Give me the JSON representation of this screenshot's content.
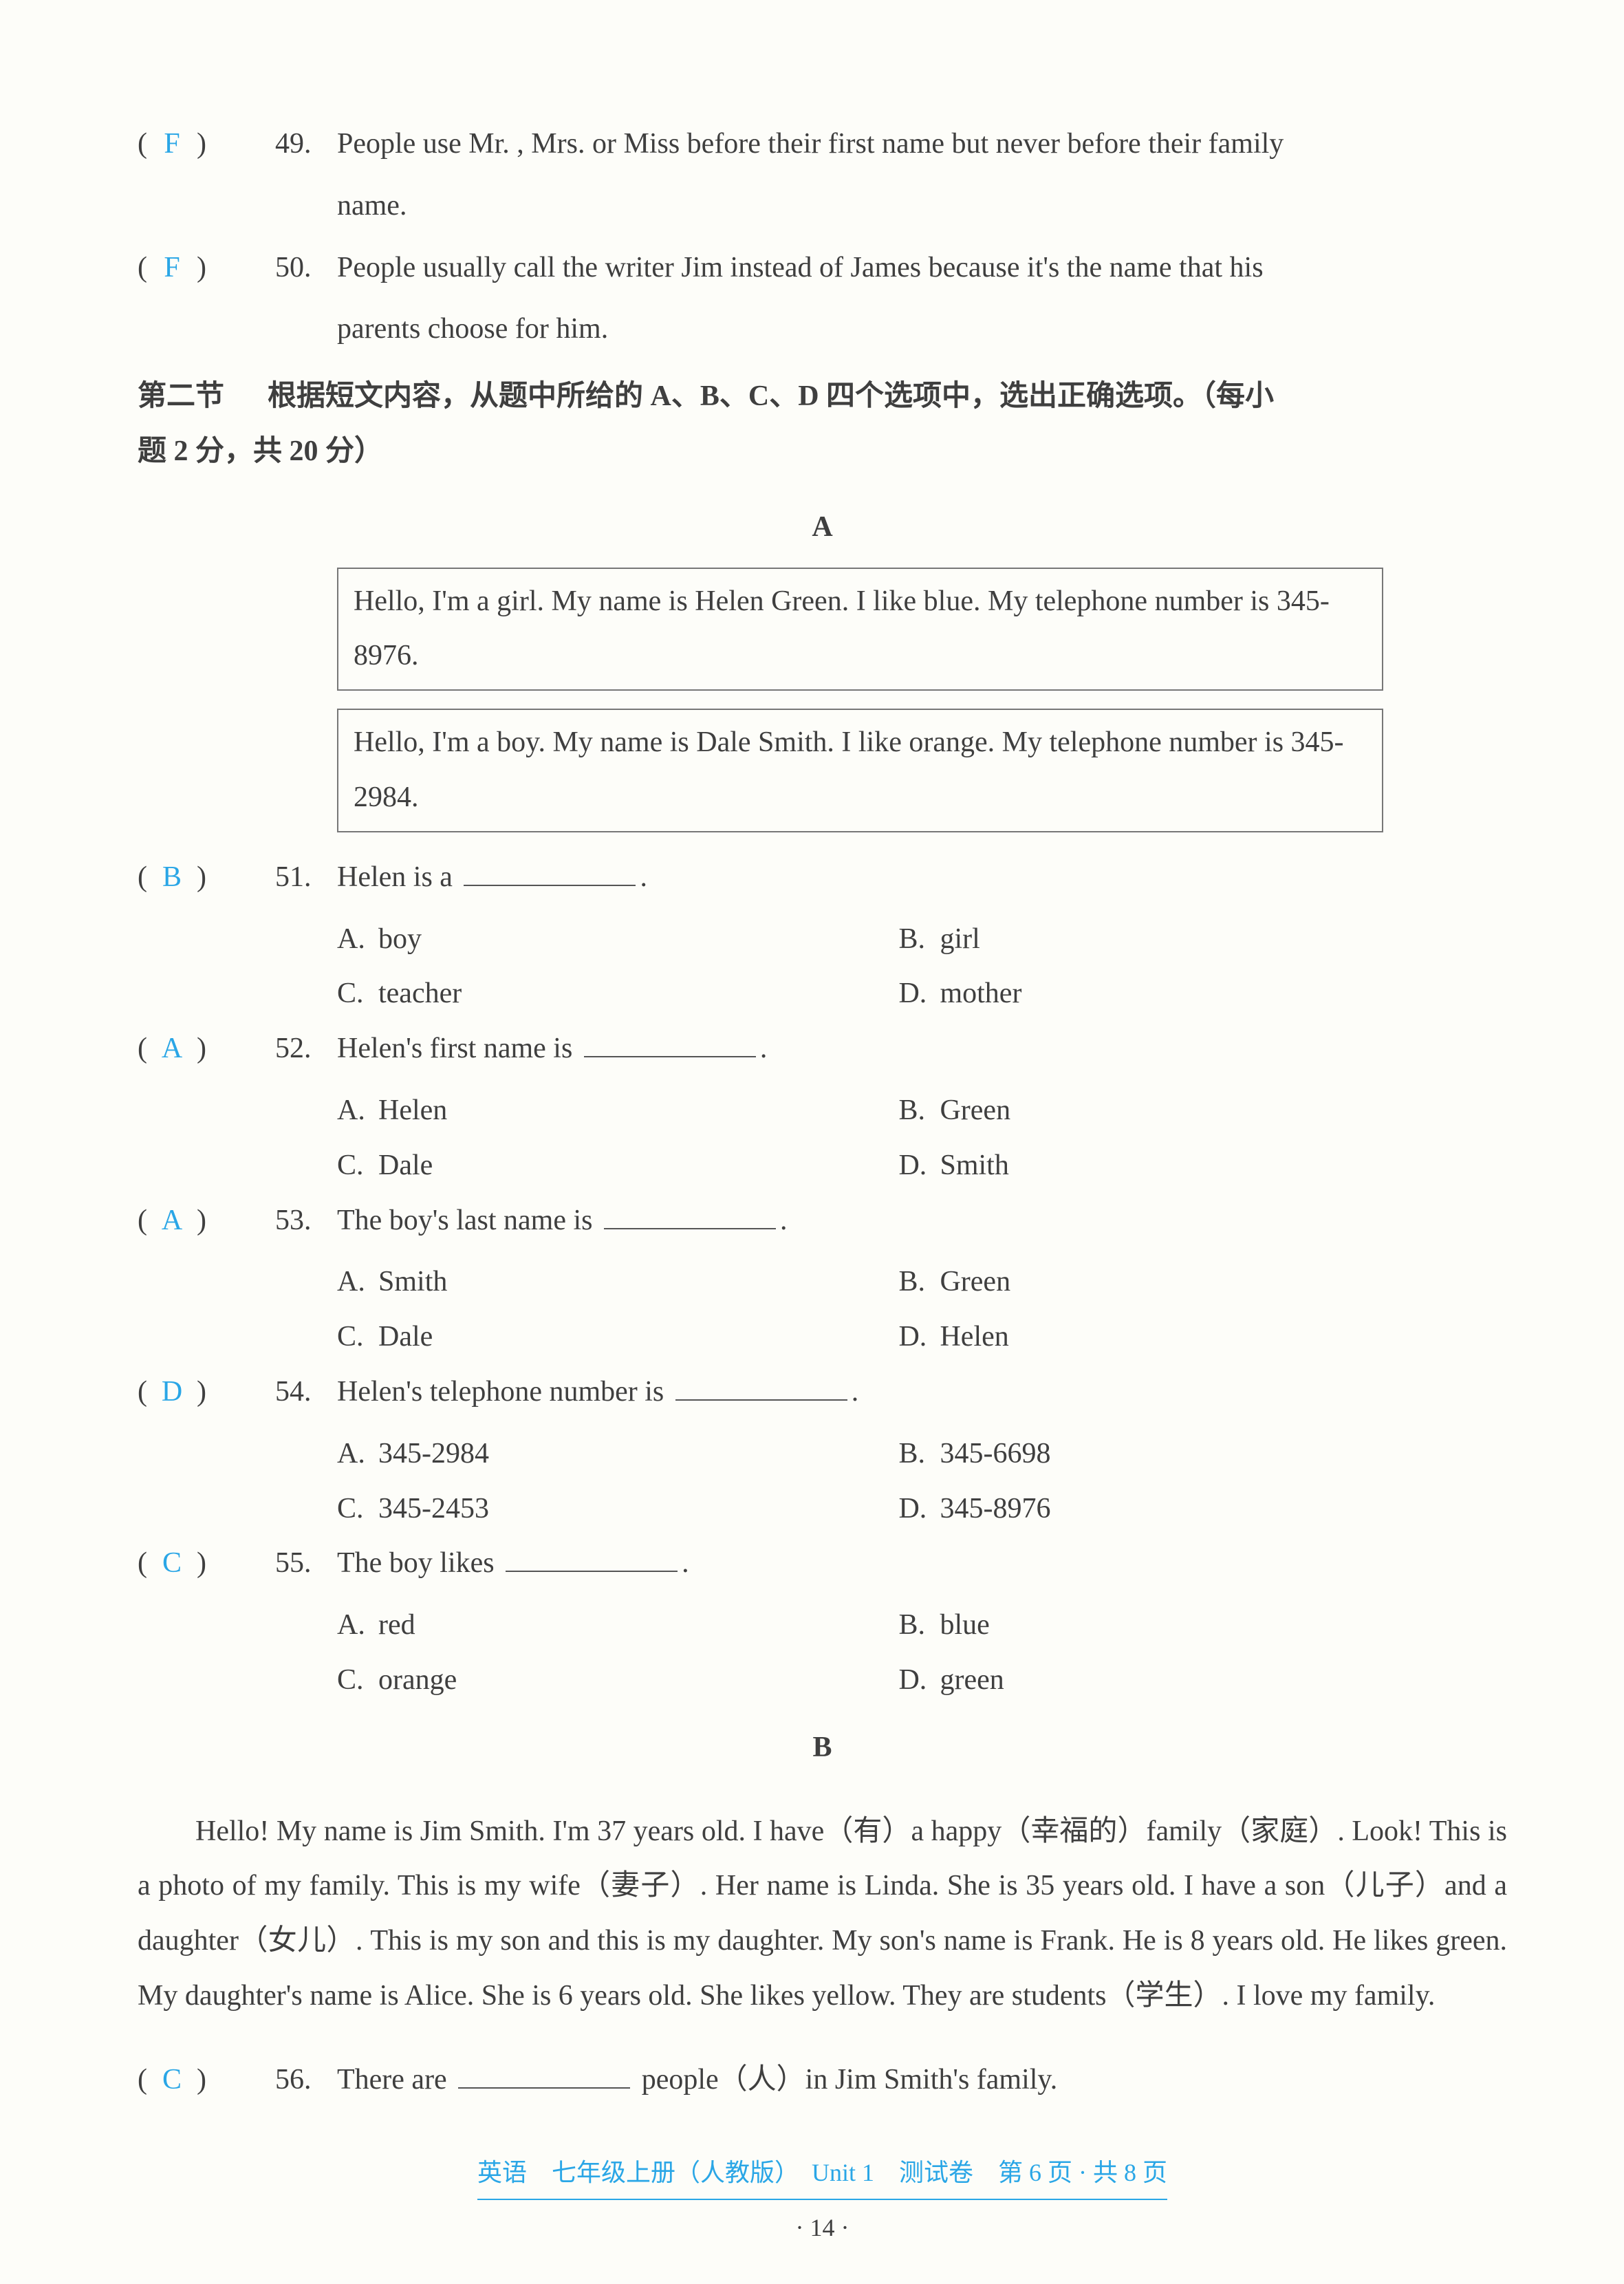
{
  "tf_questions": [
    {
      "answer": "F",
      "num": "49.",
      "lines": [
        "People use Mr. , Mrs. or Miss before their first name but never before their family",
        "name."
      ]
    },
    {
      "answer": "F",
      "num": "50.",
      "lines": [
        "People usually call the writer Jim instead of James because it's the name that his",
        "parents choose for him."
      ]
    }
  ],
  "section2": {
    "label": "第二节",
    "instr": "根据短文内容，从题中所给的 A、B、C、D 四个选项中，选出正确选项。（每小",
    "instr2": "题 2 分，共 20 分）"
  },
  "passageA": {
    "label": "A",
    "box1": "Hello, I'm a girl. My name is Helen Green. I like blue. My telephone number is 345-8976.",
    "box2": "Hello, I'm a boy. My name is Dale Smith. I like orange. My telephone number is 345-2984."
  },
  "mc_questions": [
    {
      "answer": "B",
      "num": "51.",
      "stem_pre": "Helen is a ",
      "stem_post": ".",
      "opts": {
        "A": "boy",
        "B": "girl",
        "C": "teacher",
        "D": "mother"
      }
    },
    {
      "answer": "A",
      "num": "52.",
      "stem_pre": "Helen's first name is ",
      "stem_post": ".",
      "opts": {
        "A": "Helen",
        "B": "Green",
        "C": "Dale",
        "D": "Smith"
      }
    },
    {
      "answer": "A",
      "num": "53.",
      "stem_pre": "The boy's last name is ",
      "stem_post": ".",
      "opts": {
        "A": "Smith",
        "B": "Green",
        "C": "Dale",
        "D": "Helen"
      }
    },
    {
      "answer": "D",
      "num": "54.",
      "stem_pre": "Helen's telephone number is ",
      "stem_post": ".",
      "opts": {
        "A": "345-2984",
        "B": "345-6698",
        "C": "345-2453",
        "D": "345-8976"
      }
    },
    {
      "answer": "C",
      "num": "55.",
      "stem_pre": "The boy likes ",
      "stem_post": ".",
      "opts": {
        "A": "red",
        "B": "blue",
        "C": "orange",
        "D": "green"
      }
    }
  ],
  "passageB": {
    "label": "B",
    "text": "Hello! My name is Jim Smith. I'm 37 years old. I have（有）a happy（幸福的）family（家庭）. Look! This is a photo of my family. This is my wife（妻子）. Her name is Linda. She is 35 years old. I have a son（儿子）and a daughter（女儿）. This is my son and this is my daughter. My son's name is Frank. He is 8 years old. He likes green. My daughter's name is Alice. She is 6 years old. She likes yellow. They are students（学生）. I love my family."
  },
  "q56": {
    "answer": "C",
    "num": "56.",
    "stem_pre": "There are ",
    "stem_post": " people（人）in Jim Smith's family."
  },
  "footer": {
    "line": "英语　七年级上册（人教版）　Unit 1　测试卷　第 6 页 · 共 8 页",
    "page": "· 14 ·"
  },
  "labels": {
    "optA": "A.",
    "optB": "B.",
    "optC": "C.",
    "optD": "D.",
    "paren_open": "(",
    "paren_close": ")"
  }
}
